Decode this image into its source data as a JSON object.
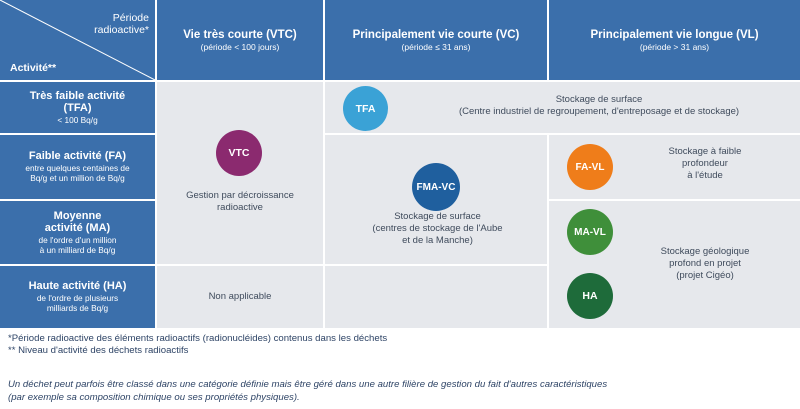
{
  "header": {
    "corner_periode": "Période\nradioactive*",
    "corner_activite": "Activité**",
    "columns": [
      {
        "title": "Vie très courte (VTC)",
        "sub": "(période < 100 jours)"
      },
      {
        "title": "Principalement vie courte (VC)",
        "sub": "(période ≤ 31 ans)"
      },
      {
        "title": "Principalement vie longue (VL)",
        "sub": "(période > 31 ans)"
      }
    ]
  },
  "rows": [
    {
      "title": "Très faible activité\n(TFA)",
      "sub": "< 100 Bq/g"
    },
    {
      "title": "Faible activité (FA)",
      "sub": "entre quelques centaines de\nBq/g et un million de Bq/g"
    },
    {
      "title": "Moyenne\nactivité (MA)",
      "sub": "de l'ordre d'un million\nà un milliard de Bq/g"
    },
    {
      "title": "Haute activité (HA)",
      "sub": "de l'ordre de plusieurs\nmilliards de Bq/g"
    }
  ],
  "badges": {
    "vtc": {
      "label": "VTC",
      "color": "#8b2a6f"
    },
    "tfa": {
      "label": "TFA",
      "color": "#3aa2d6"
    },
    "fmavc": {
      "label": "FMA-VC",
      "color": "#1f5f9e"
    },
    "favl": {
      "label": "FA-VL",
      "color": "#ef7d1a"
    },
    "mavl": {
      "label": "MA-VL",
      "color": "#3f8f3a"
    },
    "ha": {
      "label": "HA",
      "color": "#1e6b3a"
    }
  },
  "cells": {
    "vtc_text": "Gestion par décroissance\nradioactive",
    "na_text": "Non applicable",
    "tfa_text": "Stockage de surface\n(Centre industriel de regroupement, d'entreposage et de stockage)",
    "fmavc_text": "Stockage de surface\n(centres de stockage de l'Aube\net de la Manche)",
    "favl_text": "Stockage à faible\nprofondeur\nà l'étude",
    "geo_text": "Stockage géologique\nprofond en projet\n(projet Cigéo)"
  },
  "notes": {
    "n1": "*Période radioactive des éléments radioactifs (radionucléides) contenus dans les déchets",
    "n2": "** Niveau d'activité des déchets radioactifs"
  },
  "footer": "Un déchet peut parfois être classé dans une catégorie définie mais être géré dans une autre filière de gestion du fait d'autres caractéristiques\n(par exemple sa composition chimique ou ses propriétés physiques).",
  "colors": {
    "header_blue": "#3b6fab",
    "cell_grey": "#e6e8ec"
  }
}
